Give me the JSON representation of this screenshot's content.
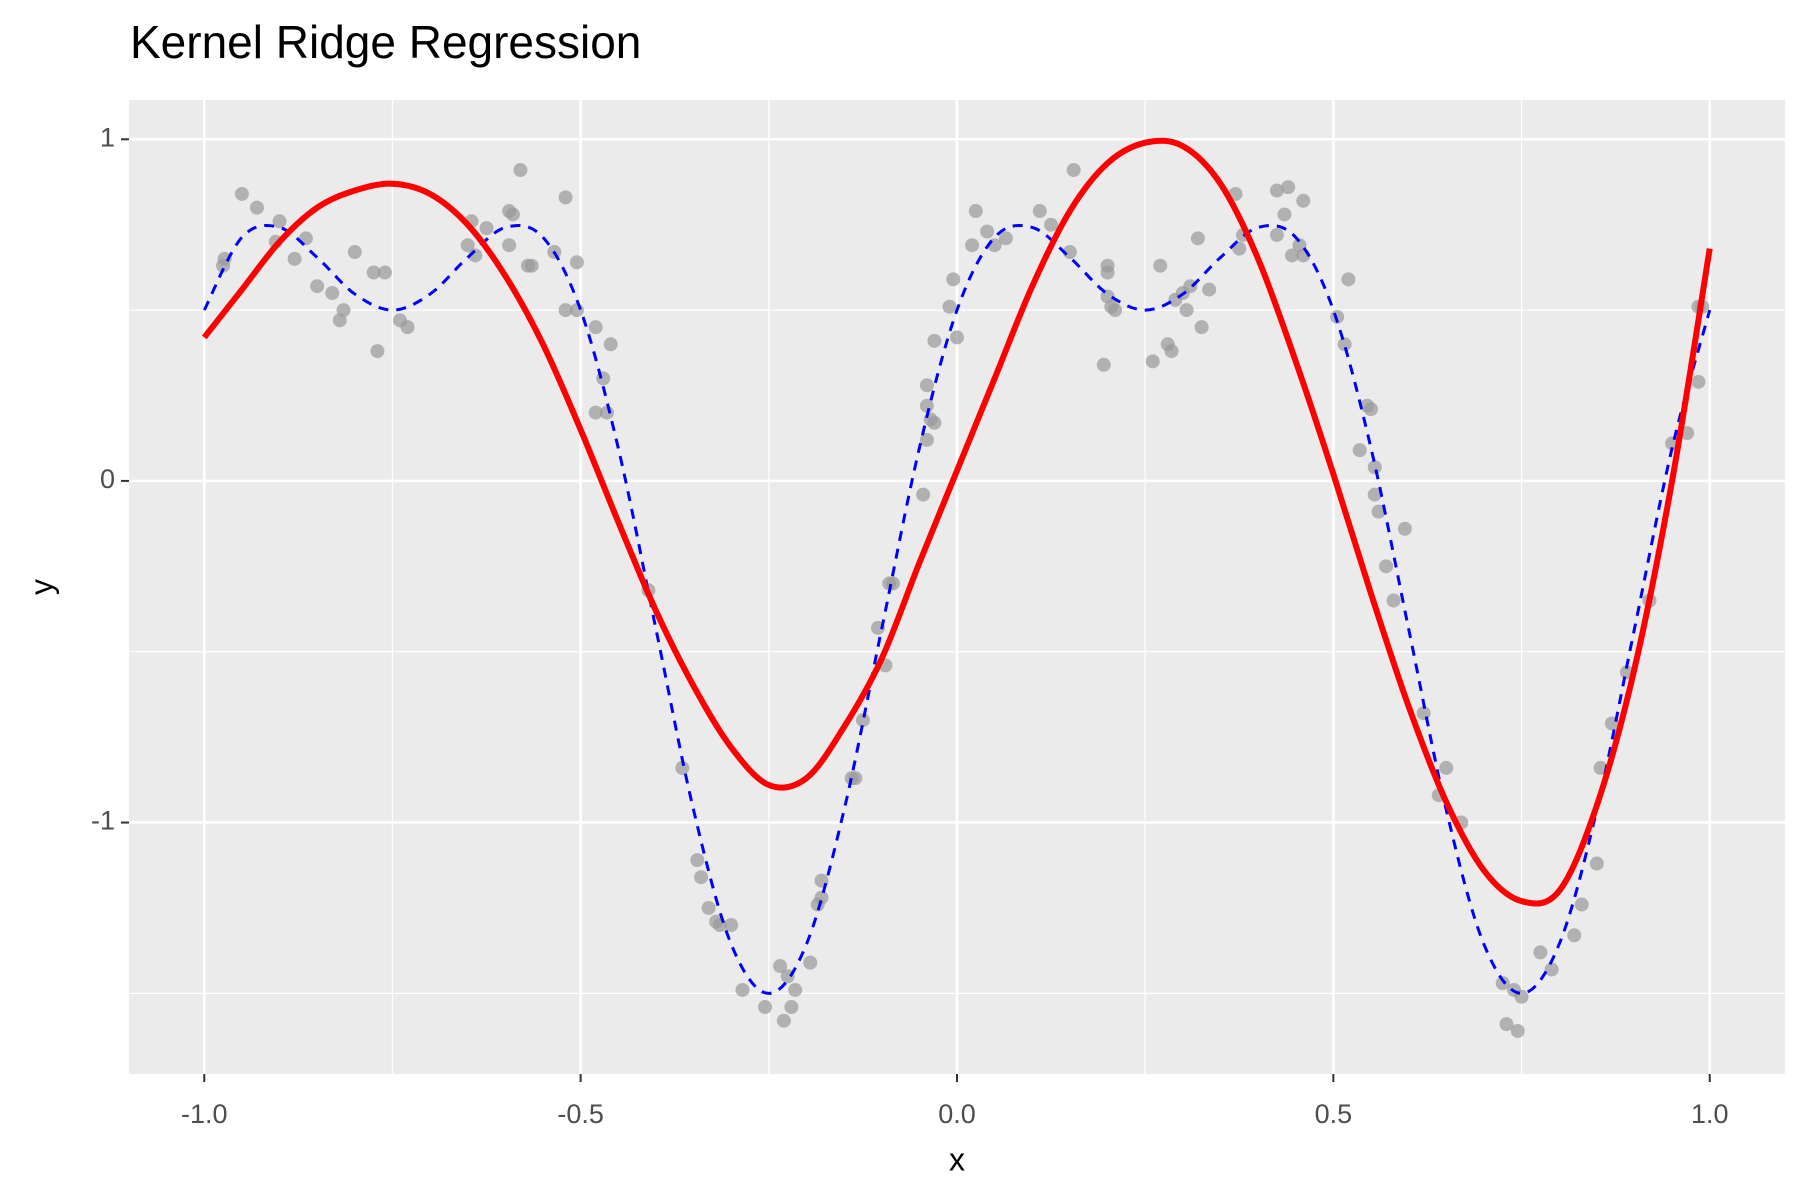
{
  "chart_data": {
    "type": "scatter",
    "title": "Kernel Ridge Regression",
    "x_label": "x",
    "y_label": "y",
    "xlim": [
      -1.1,
      1.1
    ],
    "ylim": [
      -1.736,
      1.115
    ],
    "xticks": [
      {
        "value": -1,
        "label": "-1.0"
      },
      -0.5,
      {
        "value": 0,
        "label": "0.0"
      },
      0.5,
      {
        "value": 1,
        "label": "1.0"
      }
    ],
    "yticks": [
      -1,
      0,
      1
    ],
    "x_minor_breaks": [
      -0.75,
      -0.25,
      0.25,
      0.75
    ],
    "y_minor_breaks": [
      -1.5,
      -0.5,
      0.5
    ],
    "grid": true,
    "points": {
      "color": "#999999",
      "alpha": 0.7,
      "x": [
        -0.975,
        -0.973,
        -0.95,
        -0.93,
        -0.905,
        -0.9,
        -0.88,
        -0.865,
        -0.85,
        -0.83,
        -0.82,
        -0.815,
        -0.8,
        -0.775,
        -0.76,
        -0.77,
        -0.74,
        -0.73,
        -0.65,
        -0.645,
        -0.64,
        -0.625,
        -0.595,
        -0.595,
        -0.59,
        -0.58,
        -0.57,
        -0.565,
        -0.535,
        -0.52,
        -0.52,
        -0.505,
        -0.505,
        -0.48,
        -0.46,
        -0.47,
        -0.48,
        -0.465,
        -0.41,
        -0.365,
        -0.345,
        -0.34,
        -0.33,
        -0.32,
        -0.315,
        -0.3,
        -0.285,
        -0.255,
        -0.235,
        -0.23,
        -0.225,
        -0.22,
        -0.215,
        -0.195,
        -0.185,
        -0.18,
        -0.18,
        -0.14,
        -0.135,
        -0.125,
        -0.105,
        -0.095,
        -0.09,
        -0.085,
        -0.045,
        -0.04,
        -0.04,
        -0.035,
        -0.04,
        -0.03,
        -0.03,
        -0.01,
        -0.005,
        0.0,
        0.02,
        0.025,
        0.04,
        0.05,
        0.065,
        0.11,
        0.125,
        0.15,
        0.155,
        0.195,
        0.2,
        0.2,
        0.2,
        0.205,
        0.21,
        0.26,
        0.27,
        0.28,
        0.285,
        0.29,
        0.3,
        0.305,
        0.31,
        0.32,
        0.325,
        0.335,
        0.37,
        0.375,
        0.38,
        0.425,
        0.425,
        0.435,
        0.44,
        0.445,
        0.455,
        0.46,
        0.46,
        0.505,
        0.515,
        0.52,
        0.535,
        0.545,
        0.55,
        0.555,
        0.555,
        0.56,
        0.57,
        0.58,
        0.595,
        0.62,
        0.64,
        0.65,
        0.67,
        0.725,
        0.73,
        0.74,
        0.745,
        0.75,
        0.775,
        0.79,
        0.82,
        0.83,
        0.85,
        0.855,
        0.87,
        0.89,
        0.92,
        0.95,
        0.97,
        0.985,
        0.985,
        0.99
      ],
      "y": [
        0.63,
        0.65,
        0.84,
        0.8,
        0.7,
        0.76,
        0.65,
        0.71,
        0.57,
        0.55,
        0.47,
        0.5,
        0.67,
        0.61,
        0.61,
        0.38,
        0.47,
        0.45,
        0.69,
        0.76,
        0.66,
        0.74,
        0.79,
        0.69,
        0.78,
        0.91,
        0.63,
        0.63,
        0.67,
        0.83,
        0.5,
        0.64,
        0.5,
        0.45,
        0.4,
        0.3,
        0.2,
        0.2,
        -0.32,
        -0.84,
        -1.11,
        -1.16,
        -1.25,
        -1.29,
        -1.3,
        -1.3,
        -1.49,
        -1.54,
        -1.42,
        -1.58,
        -1.45,
        -1.54,
        -1.49,
        -1.41,
        -1.24,
        -1.17,
        -1.22,
        -0.87,
        -0.87,
        -0.7,
        -0.43,
        -0.54,
        -0.3,
        -0.3,
        -0.04,
        0.12,
        0.22,
        0.18,
        0.28,
        0.41,
        0.17,
        0.51,
        0.59,
        0.42,
        0.69,
        0.79,
        0.73,
        0.69,
        0.71,
        0.79,
        0.75,
        0.67,
        0.91,
        0.34,
        0.61,
        0.63,
        0.54,
        0.51,
        0.5,
        0.35,
        0.63,
        0.4,
        0.38,
        0.53,
        0.55,
        0.5,
        0.57,
        0.71,
        0.45,
        0.56,
        0.84,
        0.68,
        0.72,
        0.72,
        0.85,
        0.78,
        0.86,
        0.66,
        0.69,
        0.66,
        0.82,
        0.48,
        0.4,
        0.59,
        0.09,
        0.22,
        0.21,
        0.04,
        -0.04,
        -0.09,
        -0.25,
        -0.35,
        -0.14,
        -0.68,
        -0.92,
        -0.84,
        -1.0,
        -1.47,
        -1.59,
        -1.49,
        -1.61,
        -1.51,
        -1.38,
        -1.43,
        -1.33,
        -1.24,
        -1.12,
        -0.84,
        -0.71,
        -0.56,
        -0.35,
        0.11,
        0.14,
        0.29,
        0.51,
        0.51
      ]
    },
    "series": [
      {
        "color": "#0000ff",
        "dashed": true,
        "width": 3,
        "x": [
          -1,
          -0.95,
          -0.9,
          -0.85,
          -0.8,
          -0.75,
          -0.7,
          -0.65,
          -0.6,
          -0.55,
          -0.5,
          -0.45,
          -0.4,
          -0.35,
          -0.3,
          -0.25,
          -0.2,
          -0.15,
          -0.1,
          -0.05,
          0,
          0.05,
          0.1,
          0.15,
          0.2,
          0.25,
          0.3,
          0.35,
          0.4,
          0.45,
          0.5,
          0.55,
          0.6,
          0.65,
          0.7,
          0.75,
          0.8,
          0.85,
          0.9,
          0.95,
          1
        ],
        "values": [
          0.5,
          0.713,
          0.742,
          0.654,
          0.547,
          0.5,
          0.547,
          0.654,
          0.742,
          0.713,
          0.5,
          0.096,
          -0.433,
          -0.963,
          -1.356,
          -1.5,
          -1.356,
          -0.963,
          -0.433,
          0.096,
          0.5,
          0.713,
          0.742,
          0.654,
          0.547,
          0.5,
          0.547,
          0.654,
          0.742,
          0.713,
          0.5,
          0.096,
          -0.433,
          -0.963,
          -1.356,
          -1.5,
          -1.356,
          -0.963,
          -0.433,
          0.096,
          0.5
        ]
      },
      {
        "color": "#ff0000",
        "dashed": false,
        "width": 6,
        "x": [
          -1,
          -0.95,
          -0.9,
          -0.85,
          -0.8,
          -0.75,
          -0.7,
          -0.65,
          -0.6,
          -0.55,
          -0.5,
          -0.45,
          -0.4,
          -0.35,
          -0.3,
          -0.25,
          -0.2,
          -0.15,
          -0.1,
          -0.05,
          0,
          0.05,
          0.1,
          0.15,
          0.2,
          0.25,
          0.3,
          0.35,
          0.4,
          0.45,
          0.5,
          0.55,
          0.6,
          0.65,
          0.7,
          0.75,
          0.8,
          0.85,
          0.9,
          0.95,
          1
        ],
        "values": [
          0.42,
          0.56,
          0.7,
          0.8,
          0.85,
          0.87,
          0.84,
          0.75,
          0.6,
          0.4,
          0.15,
          -0.12,
          -0.38,
          -0.6,
          -0.78,
          -0.89,
          -0.87,
          -0.72,
          -0.52,
          -0.24,
          0.03,
          0.3,
          0.57,
          0.79,
          0.93,
          0.99,
          0.98,
          0.87,
          0.65,
          0.35,
          0.02,
          -0.33,
          -0.66,
          -0.94,
          -1.14,
          -1.23,
          -1.2,
          -0.95,
          -0.55,
          0.0,
          0.68
        ]
      }
    ]
  }
}
